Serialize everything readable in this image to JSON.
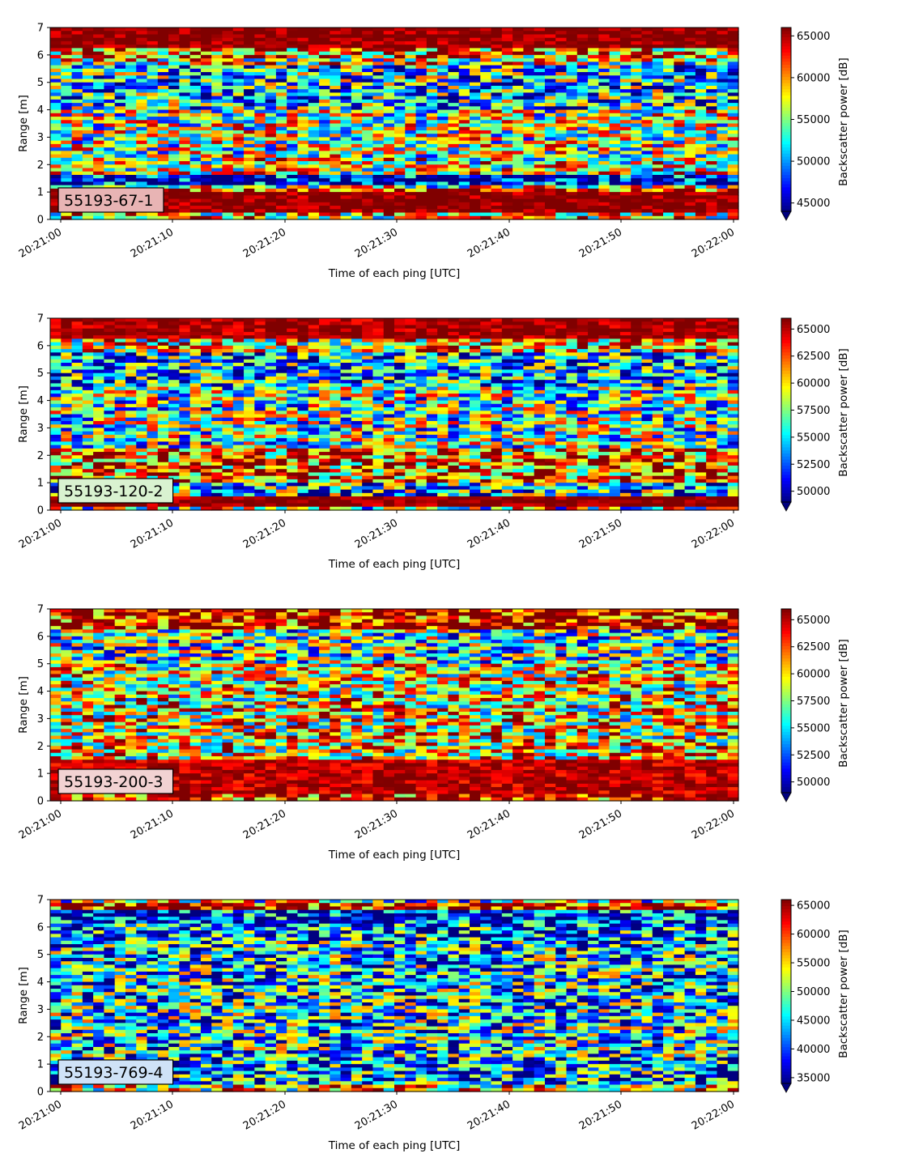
{
  "figure": {
    "xlabel": "Time of each ping [UTC]",
    "ylabel": "Range [m]",
    "colorbar_label": "Backscatter power [dB]",
    "x_ticks": [
      "20:21:00",
      "20:21:10",
      "20:21:20",
      "20:21:30",
      "20:21:40",
      "20:21:50",
      "20:22:00"
    ],
    "y_ticks": [
      "0",
      "1",
      "2",
      "3",
      "4",
      "5",
      "6",
      "7"
    ],
    "colormap": "jet",
    "colors": {
      "low": "#00008f",
      "mid": "#7fff7f",
      "high": "#800000"
    }
  },
  "chart_data": [
    {
      "type": "heatmap",
      "tag": "55193-67-1",
      "tag_color": "#e8b4b4",
      "xlabel": "Time of each ping [UTC]",
      "ylabel": "Range [m]",
      "xlim": [
        "20:21:00",
        "20:22:00"
      ],
      "ylim": [
        0,
        7
      ],
      "colorbar": {
        "label": "Backscatter power [dB]",
        "min": 44000,
        "max": 66000,
        "ticks": [
          45000,
          50000,
          55000,
          60000,
          65000
        ],
        "extend": "min"
      },
      "range_profile": [
        [
          0.0,
          0.25,
          58000
        ],
        [
          0.25,
          1.0,
          66000
        ],
        [
          1.0,
          1.15,
          63000
        ],
        [
          1.15,
          1.3,
          56000
        ],
        [
          1.3,
          1.4,
          46000
        ],
        [
          1.4,
          1.6,
          45500
        ],
        [
          1.6,
          2.2,
          57000
        ],
        [
          2.2,
          4.0,
          56000
        ],
        [
          4.0,
          5.6,
          52000
        ],
        [
          5.6,
          5.9,
          57000
        ],
        [
          5.9,
          6.3,
          60000
        ],
        [
          6.3,
          7.0,
          66000
        ]
      ]
    },
    {
      "type": "heatmap",
      "tag": "55193-120-2",
      "tag_color": "#d9f2d0",
      "xlabel": "Time of each ping [UTC]",
      "ylabel": "Range [m]",
      "xlim": [
        "20:21:00",
        "20:22:00"
      ],
      "ylim": [
        0,
        7
      ],
      "colorbar": {
        "label": "Backscatter power [dB]",
        "min": 49000,
        "max": 66000,
        "ticks": [
          50000,
          52500,
          55000,
          57500,
          60000,
          62500,
          65000
        ],
        "extend": "min"
      },
      "range_profile": [
        [
          0.0,
          0.15,
          58000
        ],
        [
          0.15,
          0.5,
          66000
        ],
        [
          0.5,
          1.0,
          55000
        ],
        [
          1.0,
          2.2,
          62000
        ],
        [
          2.2,
          4.5,
          57000
        ],
        [
          4.5,
          5.8,
          54500
        ],
        [
          5.8,
          6.3,
          60000
        ],
        [
          6.3,
          7.0,
          65500
        ]
      ]
    },
    {
      "type": "heatmap",
      "tag": "55193-200-3",
      "tag_color": "#f2d2d2",
      "xlabel": "Time of each ping [UTC]",
      "ylabel": "Range [m]",
      "xlim": [
        "20:21:00",
        "20:22:00"
      ],
      "ylim": [
        0,
        7
      ],
      "colorbar": {
        "label": "Backscatter power [dB]",
        "min": 49000,
        "max": 66000,
        "ticks": [
          50000,
          52500,
          55000,
          57500,
          60000,
          62500,
          65000
        ],
        "extend": "min"
      },
      "range_profile": [
        [
          0.0,
          0.3,
          64000
        ],
        [
          0.3,
          1.5,
          65000
        ],
        [
          1.5,
          2.5,
          60000
        ],
        [
          2.5,
          5.0,
          59500
        ],
        [
          5.0,
          6.2,
          56500
        ],
        [
          6.2,
          7.0,
          64500
        ]
      ]
    },
    {
      "type": "heatmap",
      "tag": "55193-769-4",
      "tag_color": "#cfe2f7",
      "xlabel": "Time of each ping [UTC]",
      "ylabel": "Range [m]",
      "xlim": [
        "20:21:00",
        "20:22:00"
      ],
      "ylim": [
        0,
        7
      ],
      "colorbar": {
        "label": "Backscatter power [dB]",
        "min": 34000,
        "max": 66000,
        "ticks": [
          35000,
          40000,
          45000,
          50000,
          55000,
          60000,
          65000
        ],
        "extend": "min"
      },
      "range_profile": [
        [
          0.0,
          0.2,
          55000
        ],
        [
          0.2,
          0.3,
          63000
        ],
        [
          0.3,
          1.2,
          43000
        ],
        [
          1.2,
          3.0,
          46000
        ],
        [
          3.0,
          5.5,
          45000
        ],
        [
          5.5,
          6.1,
          42000
        ],
        [
          6.1,
          6.6,
          38000
        ],
        [
          6.6,
          6.9,
          64000
        ],
        [
          6.9,
          7.0,
          50000
        ]
      ]
    }
  ]
}
